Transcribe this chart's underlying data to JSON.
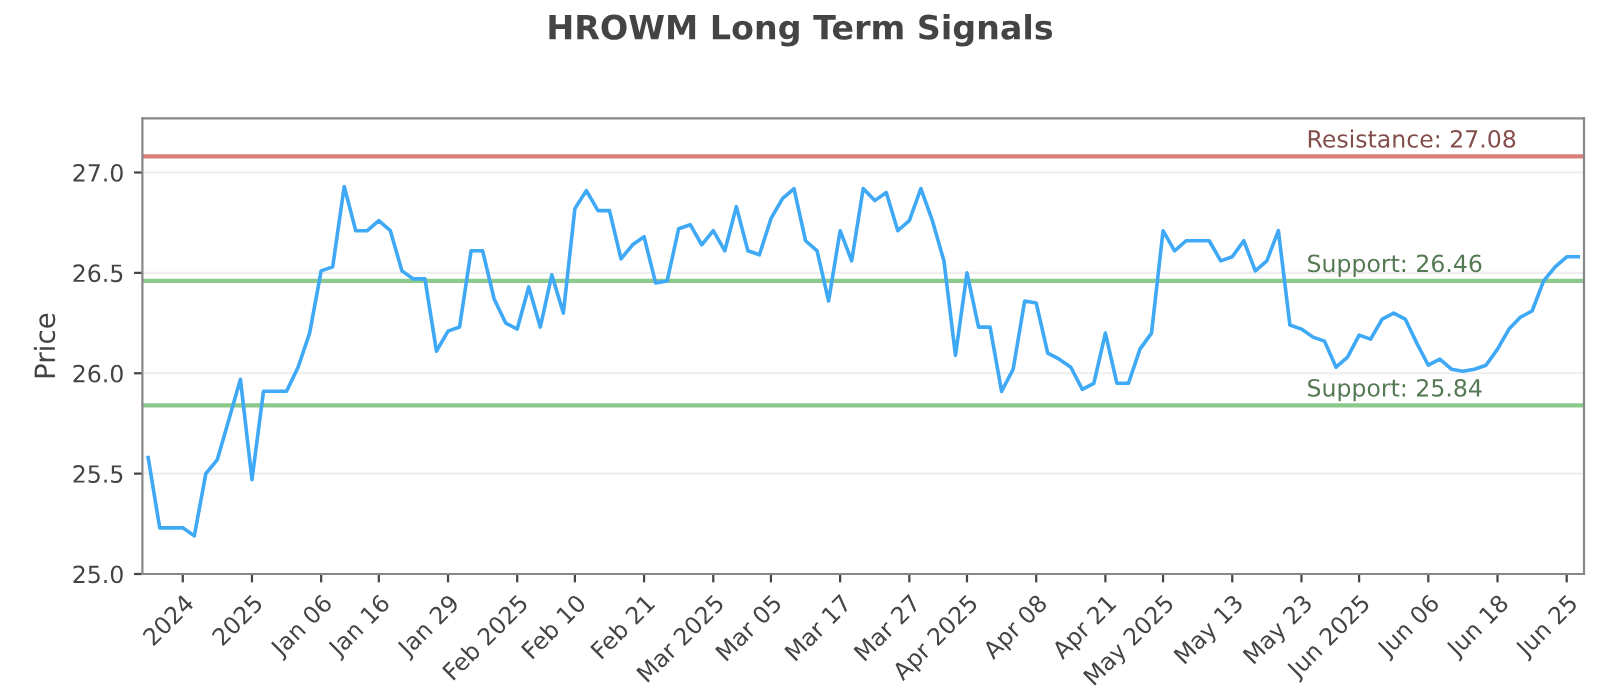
{
  "chart_data": {
    "type": "line",
    "title": "HROWM Long Term Signals",
    "ylabel": "Price",
    "categories": [
      null,
      null,
      null,
      "2024",
      null,
      null,
      null,
      null,
      null,
      "2025",
      null,
      null,
      null,
      null,
      null,
      "Jan 06",
      null,
      null,
      null,
      null,
      "Jan 16",
      null,
      null,
      null,
      null,
      null,
      "Jan 29",
      null,
      null,
      null,
      null,
      null,
      "Feb 2025",
      null,
      null,
      null,
      null,
      "Feb 10",
      null,
      null,
      null,
      null,
      null,
      "Feb 21",
      null,
      null,
      null,
      null,
      null,
      "Mar 2025",
      null,
      null,
      null,
      null,
      "Mar 05",
      null,
      null,
      null,
      null,
      null,
      "Mar 17",
      null,
      null,
      null,
      null,
      null,
      "Mar 27",
      null,
      null,
      null,
      null,
      "Apr 2025",
      null,
      null,
      null,
      null,
      null,
      "Apr 08",
      null,
      null,
      null,
      null,
      null,
      "Apr 21",
      null,
      null,
      null,
      null,
      "May 2025",
      null,
      null,
      null,
      null,
      null,
      "May 13",
      null,
      null,
      null,
      null,
      null,
      "May 23",
      null,
      null,
      null,
      null,
      "Jun 2025",
      null,
      null,
      null,
      null,
      null,
      "Jun 06",
      null,
      null,
      null,
      null,
      null,
      "Jun 18",
      null,
      null,
      null,
      null,
      null,
      "Jun 25",
      null
    ],
    "series": [
      {
        "color": "#3fa9f5",
        "values": [
          25.58,
          25.23,
          25.23,
          25.23,
          25.19,
          25.5,
          25.57,
          25.77,
          25.97,
          25.47,
          25.91,
          25.91,
          25.91,
          26.03,
          26.2,
          26.51,
          26.53,
          26.93,
          26.71,
          26.71,
          26.76,
          26.71,
          26.51,
          26.47,
          26.47,
          26.11,
          26.21,
          26.23,
          26.61,
          26.61,
          26.37,
          26.25,
          26.22,
          26.43,
          26.23,
          26.49,
          26.3,
          26.82,
          26.91,
          26.81,
          26.81,
          26.57,
          26.64,
          26.68,
          26.45,
          26.46,
          26.72,
          26.74,
          26.64,
          26.71,
          26.61,
          26.83,
          26.61,
          26.59,
          26.77,
          26.87,
          26.92,
          26.66,
          26.61,
          26.36,
          26.71,
          26.56,
          26.92,
          26.86,
          26.9,
          26.71,
          26.76,
          26.92,
          26.76,
          26.56,
          26.09,
          26.5,
          26.23,
          26.23,
          25.91,
          26.02,
          26.36,
          26.35,
          26.1,
          26.07,
          26.03,
          25.92,
          25.95,
          26.2,
          25.95,
          25.95,
          26.12,
          26.2,
          26.71,
          26.61,
          26.66,
          26.66,
          26.66,
          26.56,
          26.58,
          26.66,
          26.51,
          26.56,
          26.71,
          26.24,
          26.22,
          26.18,
          26.16,
          26.03,
          26.08,
          26.19,
          26.17,
          26.27,
          26.3,
          26.27,
          26.15,
          26.04,
          26.07,
          26.02,
          26.01,
          26.02,
          26.04,
          26.12,
          26.22,
          26.28,
          26.31,
          26.46,
          26.53,
          26.58,
          26.58
        ]
      }
    ],
    "ylim": [
      25.0,
      27.27
    ],
    "yticks": [
      {
        "value": 25.0,
        "label": "25.0"
      },
      {
        "value": 25.5,
        "label": "25.5"
      },
      {
        "value": 26.0,
        "label": "26.0"
      },
      {
        "value": 26.5,
        "label": "26.5"
      },
      {
        "value": 27.0,
        "label": "27.0"
      }
    ],
    "grid": "y",
    "ref_lines": [
      {
        "axis": "y",
        "value": 27.08,
        "label": "Resistance: 27.08",
        "color": "#d9807c"
      },
      {
        "axis": "y",
        "value": 26.46,
        "label": "Support: 26.46",
        "color": "#8cc98c"
      },
      {
        "axis": "y",
        "value": 25.84,
        "label": "Support: 25.84",
        "color": "#8cc98c"
      }
    ]
  }
}
